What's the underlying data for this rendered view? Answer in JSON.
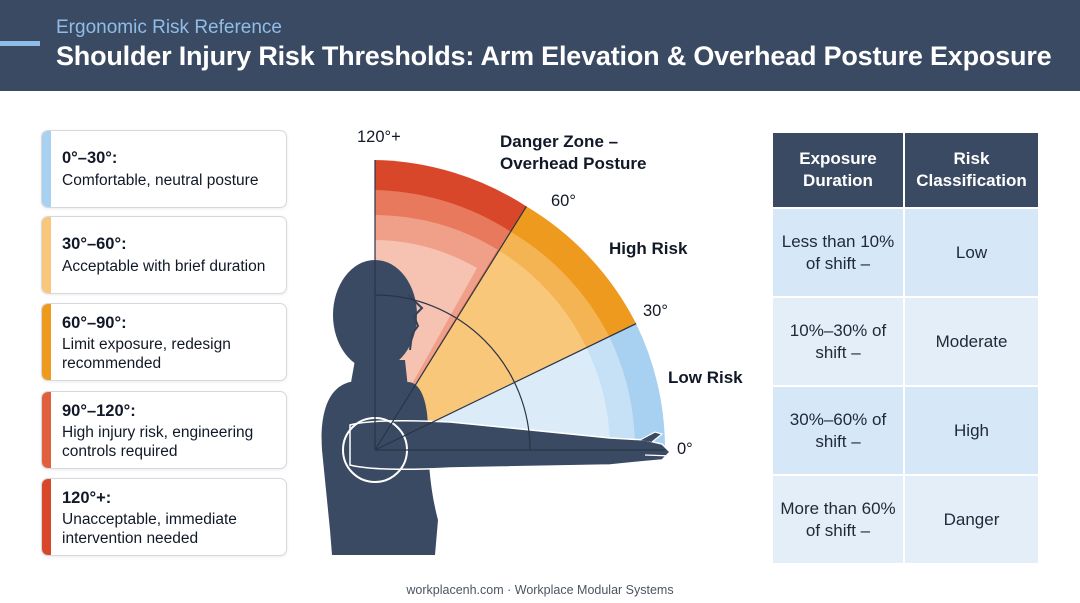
{
  "header": {
    "kicker": "Ergonomic Risk Reference",
    "title": "Shoulder Injury Risk Thresholds: Arm Elevation & Overhead Posture Exposure"
  },
  "colors": {
    "header_bg": "#3b4a63",
    "low": "#a8d0f0",
    "acceptable": "#f9c77a",
    "limit": "#ee9a1e",
    "high_injury": "#e0603e",
    "unacceptable": "#d9472b"
  },
  "ranges": [
    {
      "range": "0°–30°:",
      "desc": "Comfortable, neutral posture",
      "color": "#a8d0f0"
    },
    {
      "range": "30°–60°:",
      "desc": "Acceptable with brief duration",
      "color": "#f9c77a"
    },
    {
      "range": "60°–90°:",
      "desc": "Limit exposure, redesign recommended",
      "color": "#ee9a1e"
    },
    {
      "range": "90°–120°:",
      "desc": "High injury risk, engineering controls required",
      "color": "#e0603e"
    },
    {
      "range": "120°+:",
      "desc": "Unacceptable, immediate intervention needed",
      "color": "#d9472b"
    }
  ],
  "diagram": {
    "icon": "arm-elevation-figure",
    "angle_labels": {
      "a120": "120°+",
      "a60": "60°",
      "a30": "30°",
      "a0": "0°"
    },
    "zone_labels": {
      "danger_line1": "Danger Zone –",
      "danger_line2": "Overhead Posture",
      "high": "High Risk",
      "low": "Low Risk"
    }
  },
  "table": {
    "headers": {
      "duration": "Exposure Duration",
      "classification": "Risk Classification"
    },
    "rows": [
      {
        "duration": "Less than 10% of shift –",
        "classification": "Low"
      },
      {
        "duration": "10%–30% of shift –",
        "classification": "Moderate"
      },
      {
        "duration": "30%–60% of shift –",
        "classification": "High"
      },
      {
        "duration": "More than 60% of shift –",
        "classification": "Danger"
      }
    ]
  },
  "footer": "workplacenh.com · Workplace Modular Systems"
}
